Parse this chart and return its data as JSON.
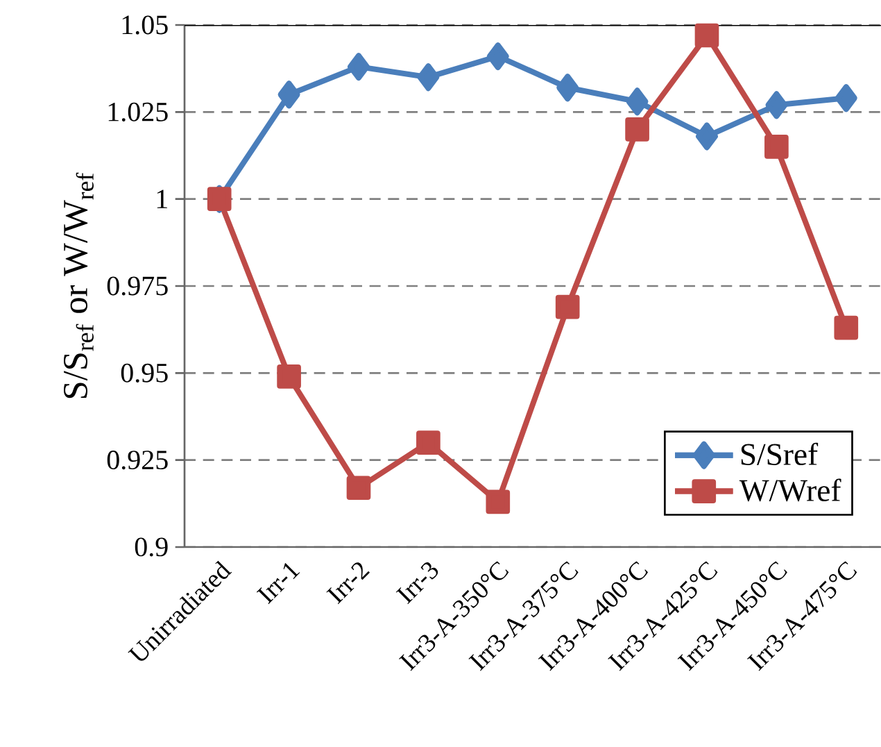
{
  "chart_data": {
    "type": "line",
    "ylabel": "S/S$_{ref}$ or W/W$_{ref}$",
    "categories": [
      "Unirradiated",
      "Irr-1",
      "Irr-2",
      "Irr-3",
      "Irr3-A-350°C",
      "Irr3-A-375°C",
      "Irr3-A-400°C",
      "Irr3-A-425°C",
      "Irr3-A-450°C",
      "Irr3-A-475°C"
    ],
    "series": [
      {
        "name": "S/Sref",
        "color": "#4a7ebb",
        "marker": "diamond",
        "values": [
          1.0,
          1.03,
          1.038,
          1.035,
          1.041,
          1.032,
          1.028,
          1.018,
          1.027,
          1.029
        ]
      },
      {
        "name": "W/Wref",
        "color": "#be4b48",
        "marker": "square",
        "values": [
          1.0,
          0.949,
          0.917,
          0.93,
          0.913,
          0.969,
          1.02,
          1.047,
          1.015,
          0.963
        ]
      }
    ],
    "ylim": [
      0.9,
      1.05
    ],
    "yticks": [
      0.9,
      0.925,
      0.95,
      0.975,
      1,
      1.025,
      1.05
    ],
    "grid": "y",
    "legend": "bottom right",
    "line_style": "solid"
  }
}
